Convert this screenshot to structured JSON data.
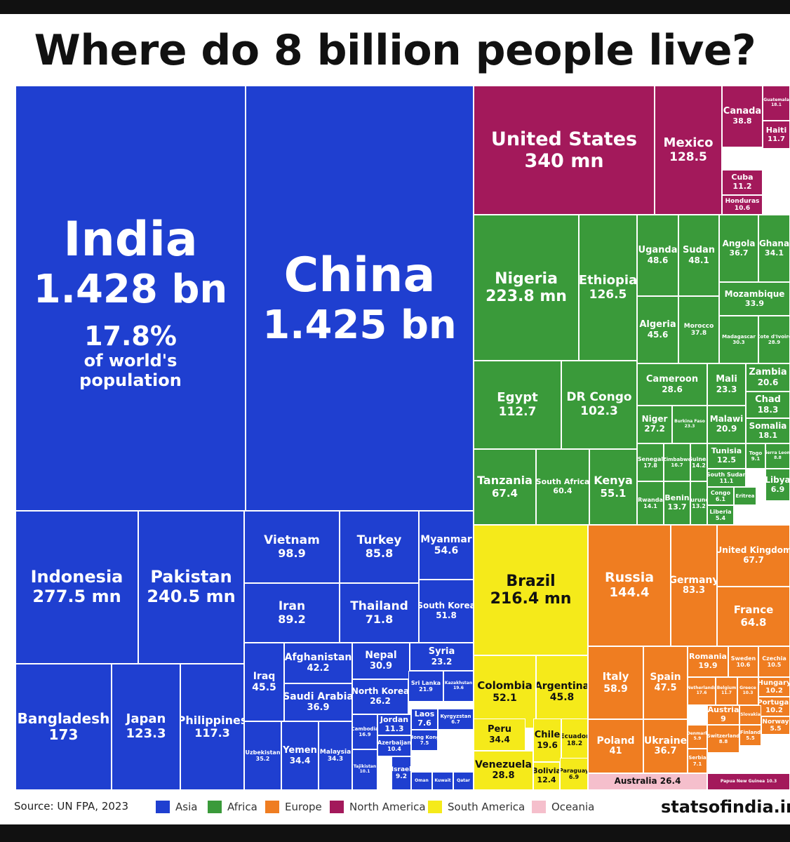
{
  "title": "Where do 8 billion people live?",
  "chart_data": {
    "type": "treemap",
    "title": "Where do 8 billion people live?",
    "unit_note": "population in millions unless stated",
    "regions": {
      "asia": "#1f3fd0",
      "africa": "#3a9a3a",
      "europe": "#ef7d21",
      "north_america": "#a3195b",
      "south_america": "#f5ea1a",
      "oceania": "#f5bfcc"
    },
    "cells": [
      {
        "name": "India",
        "value": "1.428 bn",
        "extra": "17.8%",
        "extra2": "of world's",
        "extra3": "population",
        "region": "asia"
      },
      {
        "name": "China",
        "value": "1.425 bn",
        "region": "asia"
      },
      {
        "name": "Indonesia",
        "value": "277.5 mn",
        "region": "asia"
      },
      {
        "name": "Pakistan",
        "value": "240.5 mn",
        "region": "asia"
      },
      {
        "name": "Bangladesh",
        "value": "173",
        "region": "asia"
      },
      {
        "name": "Japan",
        "value": "123.3",
        "region": "asia"
      },
      {
        "name": "Philippines",
        "value": "117.3",
        "region": "asia"
      },
      {
        "name": "Vietnam",
        "value": "98.9",
        "region": "asia"
      },
      {
        "name": "Turkey",
        "value": "85.8",
        "region": "asia"
      },
      {
        "name": "Myanmar",
        "value": "54.6",
        "region": "asia"
      },
      {
        "name": "Iran",
        "value": "89.2",
        "region": "asia"
      },
      {
        "name": "Thailand",
        "value": "71.8",
        "region": "asia"
      },
      {
        "name": "South Korea",
        "value": "51.8",
        "region": "asia"
      },
      {
        "name": "Iraq",
        "value": "45.5",
        "region": "asia"
      },
      {
        "name": "Afghanistan",
        "value": "42.2",
        "region": "asia"
      },
      {
        "name": "Saudi Arabia",
        "value": "36.9",
        "region": "asia"
      },
      {
        "name": "Nepal",
        "value": "30.9",
        "region": "asia"
      },
      {
        "name": "Syria",
        "value": "23.2",
        "region": "asia"
      },
      {
        "name": "North Korea",
        "value": "26.2",
        "region": "asia"
      },
      {
        "name": "Sri Lanka",
        "value": "21.9",
        "region": "asia"
      },
      {
        "name": "Kazakhstan",
        "value": "19.6",
        "region": "asia"
      },
      {
        "name": "Uzbekistan",
        "value": "35.2",
        "region": "asia"
      },
      {
        "name": "Yemen",
        "value": "34.4",
        "region": "asia"
      },
      {
        "name": "Malaysia",
        "value": "34.3",
        "region": "asia"
      },
      {
        "name": "Jordan",
        "value": "11.3",
        "region": "asia"
      },
      {
        "name": "Laos",
        "value": "7.6",
        "region": "asia"
      },
      {
        "name": "Kyrgyzstan",
        "value": "6.7",
        "region": "asia"
      },
      {
        "name": "Cambodia",
        "value": "16.9",
        "region": "asia"
      },
      {
        "name": "Azerbaijan",
        "value": "10.4",
        "region": "asia"
      },
      {
        "name": "Hong Kong",
        "value": "7.5",
        "region": "asia"
      },
      {
        "name": "Tajikistan",
        "value": "10.1",
        "region": "asia"
      },
      {
        "name": "Israel",
        "value": "9.2",
        "region": "asia"
      },
      {
        "name": "Oman",
        "value": "",
        "region": "asia"
      },
      {
        "name": "Kuwait",
        "value": "",
        "region": "asia"
      },
      {
        "name": "Qatar",
        "value": "",
        "region": "asia"
      },
      {
        "name": "United States",
        "value": "340 mn",
        "region": "north_america"
      },
      {
        "name": "Mexico",
        "value": "128.5",
        "region": "north_america"
      },
      {
        "name": "Canada",
        "value": "38.8",
        "region": "north_america"
      },
      {
        "name": "Guatemala",
        "value": "18.1",
        "region": "north_america"
      },
      {
        "name": "Haiti",
        "value": "11.7",
        "region": "north_america"
      },
      {
        "name": "Cuba",
        "value": "11.2",
        "region": "north_america"
      },
      {
        "name": "Honduras",
        "value": "10.6",
        "region": "north_america"
      },
      {
        "name": "Nigeria",
        "value": "223.8 mn",
        "region": "africa"
      },
      {
        "name": "Ethiopia",
        "value": "126.5",
        "region": "africa"
      },
      {
        "name": "Uganda",
        "value": "48.6",
        "region": "africa"
      },
      {
        "name": "Sudan",
        "value": "48.1",
        "region": "africa"
      },
      {
        "name": "Angola",
        "value": "36.7",
        "region": "africa"
      },
      {
        "name": "Ghana",
        "value": "34.1",
        "region": "africa"
      },
      {
        "name": "Mozambique",
        "value": "33.9",
        "region": "africa"
      },
      {
        "name": "Algeria",
        "value": "45.6",
        "region": "africa"
      },
      {
        "name": "Morocco",
        "value": "37.8",
        "region": "africa"
      },
      {
        "name": "Madagascar",
        "value": "30.3",
        "region": "africa"
      },
      {
        "name": "Cote d'Ivoire",
        "value": "28.9",
        "region": "africa"
      },
      {
        "name": "Egypt",
        "value": "112.7",
        "region": "africa"
      },
      {
        "name": "DR Congo",
        "value": "102.3",
        "region": "africa"
      },
      {
        "name": "Cameroon",
        "value": "28.6",
        "region": "africa"
      },
      {
        "name": "Mali",
        "value": "23.3",
        "region": "africa"
      },
      {
        "name": "Zambia",
        "value": "20.6",
        "region": "africa"
      },
      {
        "name": "Niger",
        "value": "27.2",
        "region": "africa"
      },
      {
        "name": "Burkina Faso",
        "value": "23.3",
        "region": "africa"
      },
      {
        "name": "Malawi",
        "value": "20.9",
        "region": "africa"
      },
      {
        "name": "Chad",
        "value": "18.3",
        "region": "africa"
      },
      {
        "name": "Somalia",
        "value": "18.1",
        "region": "africa"
      },
      {
        "name": "Tunisia",
        "value": "12.5",
        "region": "africa"
      },
      {
        "name": "Togo",
        "value": "9.1",
        "region": "africa"
      },
      {
        "name": "Sierra Leone",
        "value": "8.8",
        "region": "africa"
      },
      {
        "name": "South Sudan",
        "value": "11.1",
        "region": "africa"
      },
      {
        "name": "Libya",
        "value": "6.9",
        "region": "africa"
      },
      {
        "name": "Tanzania",
        "value": "67.4",
        "region": "africa"
      },
      {
        "name": "South Africa",
        "value": "60.4",
        "region": "africa"
      },
      {
        "name": "Kenya",
        "value": "55.1",
        "region": "africa"
      },
      {
        "name": "Senegal",
        "value": "17.8",
        "region": "africa"
      },
      {
        "name": "Zimbabwe",
        "value": "16.7",
        "region": "africa"
      },
      {
        "name": "Guinea",
        "value": "14.2",
        "region": "africa"
      },
      {
        "name": "Rwanda",
        "value": "14.1",
        "region": "africa"
      },
      {
        "name": "Benin",
        "value": "13.7",
        "region": "africa"
      },
      {
        "name": "Burundi",
        "value": "13.2",
        "region": "africa"
      },
      {
        "name": "Congo",
        "value": "6.1",
        "region": "africa"
      },
      {
        "name": "Eritrea",
        "value": "",
        "region": "africa"
      },
      {
        "name": "Liberia",
        "value": "5.4",
        "region": "africa"
      },
      {
        "name": "Brazil",
        "value": "216.4 mn",
        "region": "south_america"
      },
      {
        "name": "Colombia",
        "value": "52.1",
        "region": "south_america"
      },
      {
        "name": "Argentina",
        "value": "45.8",
        "region": "south_america"
      },
      {
        "name": "Peru",
        "value": "34.4",
        "region": "south_america"
      },
      {
        "name": "Chile",
        "value": "19.6",
        "region": "south_america"
      },
      {
        "name": "Ecuador",
        "value": "18.2",
        "region": "south_america"
      },
      {
        "name": "Venezuela",
        "value": "28.8",
        "region": "south_america"
      },
      {
        "name": "Bolivia",
        "value": "12.4",
        "region": "south_america"
      },
      {
        "name": "Paraguay",
        "value": "6.9",
        "region": "south_america"
      },
      {
        "name": "Russia",
        "value": "144.4",
        "region": "europe"
      },
      {
        "name": "Germany",
        "value": "83.3",
        "region": "europe"
      },
      {
        "name": "United Kingdom",
        "value": "67.7",
        "region": "europe"
      },
      {
        "name": "France",
        "value": "64.8",
        "region": "europe"
      },
      {
        "name": "Italy",
        "value": "58.9",
        "region": "europe"
      },
      {
        "name": "Spain",
        "value": "47.5",
        "region": "europe"
      },
      {
        "name": "Romania",
        "value": "19.9",
        "region": "europe"
      },
      {
        "name": "Sweden",
        "value": "10.6",
        "region": "europe"
      },
      {
        "name": "Czechia",
        "value": "10.5",
        "region": "europe"
      },
      {
        "name": "Netherlands",
        "value": "17.6",
        "region": "europe"
      },
      {
        "name": "Belgium",
        "value": "11.7",
        "region": "europe"
      },
      {
        "name": "Greece",
        "value": "10.3",
        "region": "europe"
      },
      {
        "name": "Hungary",
        "value": "10.2",
        "region": "europe"
      },
      {
        "name": "Portugal",
        "value": "10.2",
        "region": "europe"
      },
      {
        "name": "Austria",
        "value": "9",
        "region": "europe"
      },
      {
        "name": "Slovakia",
        "value": "",
        "region": "europe"
      },
      {
        "name": "Norway",
        "value": "5.5",
        "region": "europe"
      },
      {
        "name": "Denmark",
        "value": "5.9",
        "region": "europe"
      },
      {
        "name": "Switzerland",
        "value": "8.8",
        "region": "europe"
      },
      {
        "name": "Finland",
        "value": "5.5",
        "region": "europe"
      },
      {
        "name": "Serbia",
        "value": "7.1",
        "region": "europe"
      },
      {
        "name": "Poland",
        "value": "41",
        "region": "europe"
      },
      {
        "name": "Ukraine",
        "value": "36.7",
        "region": "europe"
      },
      {
        "name": "Australia",
        "value": "26.4",
        "region": "oceania"
      },
      {
        "name": "Papua New Guinea",
        "value": "10.3",
        "region": "oceania"
      }
    ]
  },
  "legend": {
    "source": "Source: UN FPA, 2023",
    "items": [
      {
        "label": "Asia",
        "color": "#1f3fd0"
      },
      {
        "label": "Africa",
        "color": "#3a9a3a"
      },
      {
        "label": "Europe",
        "color": "#ef7d21"
      },
      {
        "label": "North America",
        "color": "#a3195b"
      },
      {
        "label": "South America",
        "color": "#f5ea1a"
      },
      {
        "label": "Oceania",
        "color": "#f5bfcc"
      }
    ],
    "brand": "statsofindia.in"
  }
}
